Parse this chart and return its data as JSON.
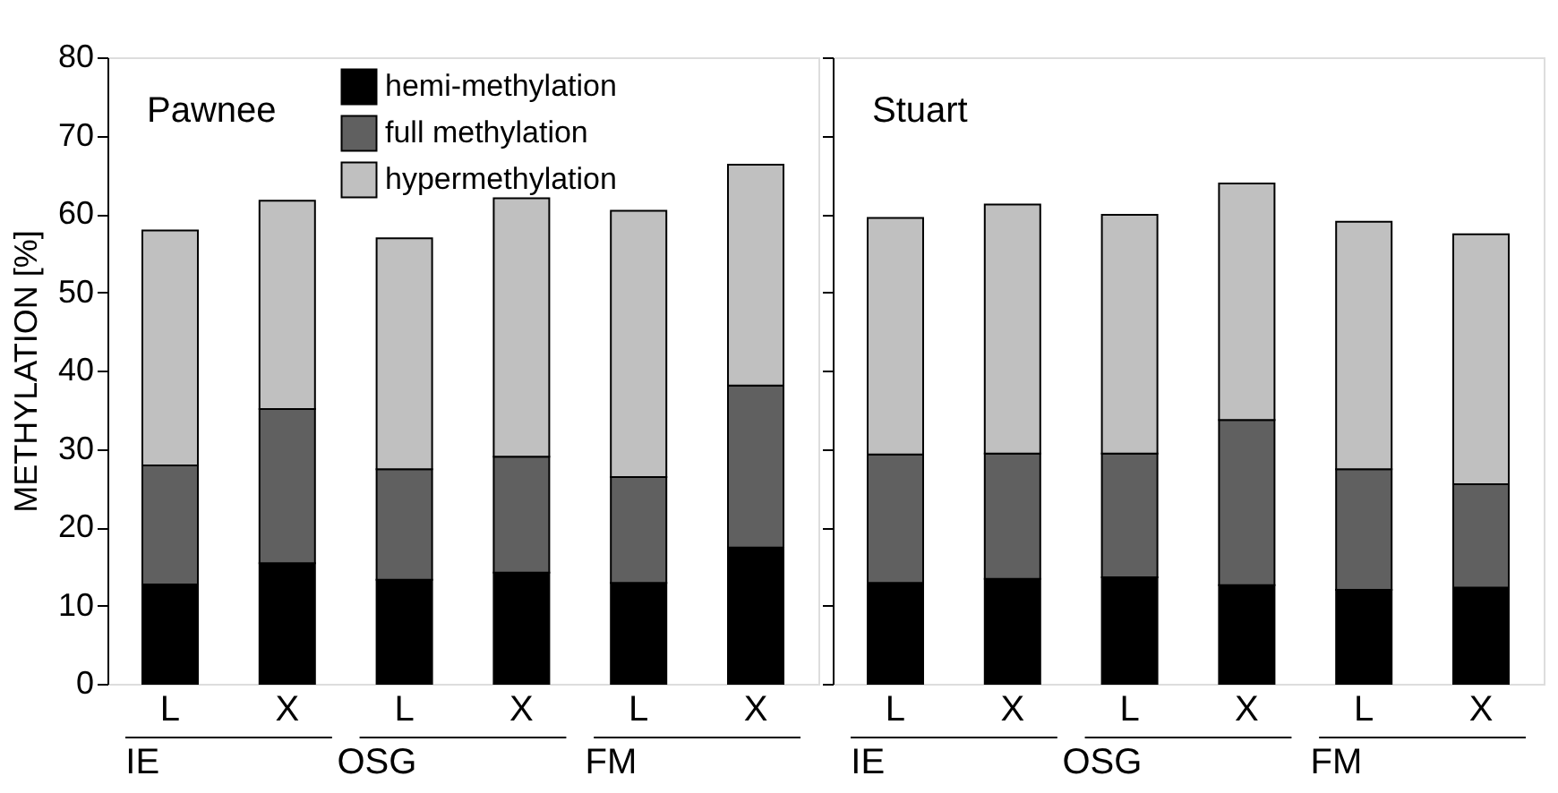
{
  "chart_data": [
    {
      "type": "bar",
      "title": "Pawnee",
      "ylabel": "METHYLATION [%]",
      "stacked": true,
      "grid": false,
      "legend": "top",
      "ylim": [
        0,
        80
      ],
      "yticks": [
        0,
        10,
        20,
        30,
        40,
        50,
        60,
        70,
        80
      ],
      "categories": [
        "L",
        "X",
        "L",
        "X",
        "L",
        "X"
      ],
      "annotations": [
        "IE",
        "OSG",
        "FM"
      ],
      "series": [
        {
          "name": "hemi-methylation",
          "color": "#000000",
          "values": [
            12.7,
            15.4,
            13.3,
            14.2,
            12.9,
            17.4
          ]
        },
        {
          "name": "full methylation",
          "color": "#606060",
          "values": [
            15.2,
            19.7,
            14.1,
            14.8,
            13.5,
            20.7
          ]
        },
        {
          "name": "hypermethylation",
          "color": "#c0c0c0",
          "values": [
            30.0,
            26.6,
            29.5,
            33.0,
            34.0,
            28.2
          ]
        }
      ]
    },
    {
      "type": "bar",
      "title": "Stuart",
      "stacked": true,
      "grid": false,
      "legend": false,
      "tick_labels": "x",
      "ylim": [
        0,
        80
      ],
      "yticks": [
        0,
        10,
        20,
        30,
        40,
        50,
        60,
        70,
        80
      ],
      "categories": [
        "L",
        "X",
        "L",
        "X",
        "L",
        "X"
      ],
      "annotations": [
        "IE",
        "OSG",
        "FM"
      ],
      "series": [
        {
          "color": "#000000",
          "values": [
            12.9,
            13.4,
            13.6,
            12.6,
            12.0,
            12.3
          ]
        },
        {
          "color": "#606060",
          "values": [
            16.4,
            16.0,
            15.8,
            21.1,
            15.4,
            13.2
          ]
        },
        {
          "color": "#c0c0c0",
          "values": [
            30.2,
            31.8,
            30.5,
            30.2,
            31.6,
            31.9
          ]
        }
      ]
    }
  ]
}
